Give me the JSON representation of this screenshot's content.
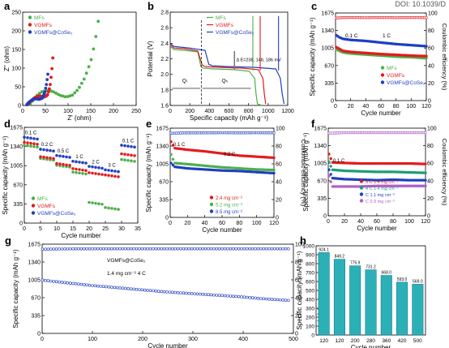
{
  "header": {
    "doi": "DOI: 10.1039/D"
  },
  "colors": {
    "mf": "#4daf4a",
    "vg": "#e41a1c",
    "cs": "#1f3fbf",
    "ce": "#1f3fbf",
    "gray": "#777777"
  },
  "panels": {
    "a": {
      "letter": "a",
      "xlabel": "Z' (ohm)",
      "ylabel": "Z'' (ohm)",
      "xticks": [
        "0",
        "50",
        "100",
        "150",
        "200",
        "250"
      ],
      "yticks": [
        "0",
        "50",
        "100",
        "150",
        "200",
        "250"
      ],
      "legend": [
        "MFs",
        "VGMFs",
        "VGMFs@CoSe₂"
      ]
    },
    "b": {
      "letter": "b",
      "xlabel": "Specific capacity (mAh g⁻¹)",
      "ylabel": "Potential (V)",
      "xticks": [
        "0",
        "200",
        "400",
        "600",
        "800",
        "1000",
        "1200"
      ],
      "yticks": [
        "1.6",
        "1.8",
        "2.0",
        "2.2",
        "2.4",
        "2.6",
        "2.8"
      ],
      "legend": [
        "MFs",
        "VGMFs",
        "VGMFs@CoSe₂"
      ],
      "annot": "Δ E=238, 148, 186 mV",
      "q_left": "Qₗ",
      "q_right": "Qₕ"
    },
    "c": {
      "letter": "c",
      "xlabel": "Cycle number",
      "ylabel": "Specific capacity (mAh g⁻¹)",
      "y2label": "Coulombic efficiency (%)",
      "xticks": [
        "0",
        "20",
        "40",
        "60",
        "80",
        "100",
        "120"
      ],
      "yticks": [
        "0",
        "335",
        "670",
        "1005",
        "1340",
        "1675"
      ],
      "y2ticks": [
        "0",
        "20",
        "40",
        "60",
        "80",
        "100"
      ],
      "rate1": "0.1 C",
      "rate2": "1 C",
      "legend": [
        "MFs",
        "VGMFs",
        "VGMFs@CoSe₂"
      ]
    },
    "d": {
      "letter": "d",
      "xlabel": "Cycle number",
      "ylabel": "Specific capacity (mAh g⁻¹)",
      "xticks": [
        "0",
        "5",
        "10",
        "15",
        "20",
        "25",
        "30",
        "35"
      ],
      "yticks": [
        "0",
        "335",
        "670",
        "1005",
        "1340",
        "1675"
      ],
      "rates": [
        "0.1 C",
        "0.2 C",
        "0.5 C",
        "1 C",
        "2 C",
        "3 C",
        "0.1 C"
      ],
      "legend": [
        "MFs",
        "VGMFs",
        "VGMFs@CoSe₂"
      ]
    },
    "e": {
      "letter": "e",
      "xlabel": "Cycle number",
      "ylabel": "Specific capacity (mAh g⁻¹)",
      "y2label": "Coulombic efficiency (%)",
      "xticks": [
        "0",
        "20",
        "40",
        "60",
        "80",
        "100",
        "120"
      ],
      "yticks": [
        "0",
        "335",
        "670",
        "1005",
        "1340",
        "1675"
      ],
      "y2ticks": [
        "0",
        "20",
        "40",
        "60",
        "80",
        "100"
      ],
      "rate1": "0.1 C",
      "rate2": "0.2 C",
      "legend": [
        "2.4 mg cm⁻²",
        "5.2 mg cm⁻²",
        "8.5 mg cm⁻²"
      ]
    },
    "f": {
      "letter": "f",
      "xlabel": "Cycle number",
      "ylabel": "Specific capacity (mAh g⁻¹)",
      "y2label": "Coulombic efficiency (%)",
      "xticks": [
        "0",
        "20",
        "40",
        "60",
        "80",
        "100",
        "120"
      ],
      "yticks": [
        "0",
        "335",
        "670",
        "1005",
        "1340",
        "1675"
      ],
      "y2ticks": [
        "0",
        "20",
        "40",
        "60",
        "80",
        "100"
      ],
      "rate1": "0.1 C",
      "legend": [
        "5 C 1.4 mg cm⁻²",
        "4 C 1.4 mg cm⁻²",
        "C 1.1 mg cm⁻²",
        "C 0.9 mg cm⁻²"
      ]
    },
    "g": {
      "letter": "g",
      "xlabel": "Cycle number",
      "ylabel": "Specific capacity (mAh g⁻¹)",
      "y2label": "Coulombic efficiency (%)",
      "xticks": [
        "0",
        "100",
        "200",
        "300",
        "400",
        "500"
      ],
      "yticks": [
        "0",
        "335",
        "670",
        "1005",
        "1340",
        "1675"
      ],
      "y2ticks": [
        "0",
        "20",
        "40",
        "60",
        "80",
        "100"
      ],
      "label1": "VGMFs@CoSe₂",
      "label2": "1.4 mg cm⁻² 4 C"
    },
    "h": {
      "letter": "h",
      "xlabel": "Cycle number",
      "ylabel": "Specific capacity (mAh g⁻¹)",
      "yticks": [
        "0",
        "100",
        "200",
        "300",
        "400",
        "500",
        "600",
        "700",
        "800",
        "900",
        "1000"
      ]
    }
  },
  "chart_data": [
    {
      "type": "scatter",
      "panel": "a",
      "xlim": [
        0,
        275
      ],
      "ylim": [
        0,
        275
      ],
      "series": [
        {
          "name": "MFs",
          "x": [
            18,
            22,
            28,
            35,
            45,
            58,
            72,
            90,
            105,
            120,
            135,
            150,
            165,
            175,
            183
          ],
          "y": [
            4,
            10,
            20,
            30,
            40,
            44,
            42,
            30,
            25,
            30,
            48,
            80,
            130,
            185,
            248
          ]
        },
        {
          "name": "VGMFs",
          "x": [
            12,
            18,
            24,
            32,
            42,
            52,
            60,
            66,
            70,
            73
          ],
          "y": [
            3,
            10,
            18,
            25,
            28,
            25,
            30,
            55,
            95,
            140
          ]
        },
        {
          "name": "VGMFs@CoSe₂",
          "x": [
            10,
            14,
            20,
            26,
            32,
            40,
            48,
            54,
            58,
            61
          ],
          "y": [
            2,
            8,
            14,
            18,
            20,
            18,
            22,
            40,
            65,
            92
          ]
        }
      ]
    },
    {
      "type": "line",
      "panel": "b",
      "xlim": [
        0,
        1280
      ],
      "ylim": [
        1.6,
        2.8
      ],
      "series": [
        {
          "name": "MFs",
          "x": [
            0,
            40,
            150,
            300,
            335,
            360,
            480,
            700,
            860,
            920,
            935,
            950,
            1000
          ],
          "y": [
            2.36,
            2.32,
            2.31,
            2.29,
            2.1,
            2.08,
            2.07,
            2.06,
            2.04,
            1.95,
            1.75,
            1.62,
            1.6
          ]
        },
        {
          "name": "VGMFs",
          "x": [
            0,
            40,
            150,
            300,
            350,
            380,
            520,
            780,
            960,
            1010,
            1025,
            1040
          ],
          "y": [
            2.38,
            2.34,
            2.33,
            2.3,
            2.12,
            2.1,
            2.09,
            2.08,
            2.06,
            1.95,
            1.75,
            1.62
          ]
        },
        {
          "name": "VGMFs@CoSe₂",
          "x": [
            0,
            40,
            200,
            380,
            420,
            460,
            640,
            920,
            1150,
            1200,
            1220,
            1240
          ],
          "y": [
            2.4,
            2.36,
            2.34,
            2.31,
            2.13,
            2.11,
            2.1,
            2.09,
            2.07,
            1.95,
            1.75,
            1.62
          ]
        }
      ]
    },
    {
      "type": "scatter",
      "panel": "c",
      "xlim": [
        0,
        120
      ],
      "ylim": [
        0,
        1675
      ],
      "y2lim": [
        0,
        105
      ],
      "series": [
        {
          "name": "MFs",
          "x": [
            1,
            5,
            10,
            20,
            40,
            60,
            80,
            100,
            120
          ],
          "y": [
            980,
            950,
            920,
            900,
            880,
            860,
            840,
            830,
            810
          ]
        },
        {
          "name": "VGMFs",
          "x": [
            1,
            5,
            10,
            20,
            40,
            60,
            80,
            100,
            120
          ],
          "y": [
            1020,
            990,
            950,
            930,
            910,
            890,
            875,
            860,
            850
          ]
        },
        {
          "name": "VGMFs@CoSe₂",
          "x": [
            1,
            5,
            10,
            20,
            40,
            60,
            80,
            100,
            120
          ],
          "y": [
            1250,
            1210,
            1180,
            1160,
            1140,
            1110,
            1080,
            1060,
            1040
          ]
        },
        {
          "name": "CE",
          "x": [
            1,
            10,
            20,
            40,
            60,
            80,
            100,
            120
          ],
          "y": [
            99,
            99.5,
            99.6,
            99.5,
            99.6,
            99.5,
            99.6,
            99.5
          ]
        }
      ]
    },
    {
      "type": "scatter",
      "panel": "d",
      "xlim": [
        0,
        35
      ],
      "ylim": [
        0,
        1675
      ],
      "categories": [
        "0.1 C",
        "0.2 C",
        "0.5 C",
        "1 C",
        "2 C",
        "3 C",
        "0.1 C"
      ],
      "series": [
        {
          "name": "MFs",
          "x": [
            2,
            7,
            12,
            17,
            22,
            27,
            32
          ],
          "y": [
            1330,
            1100,
            980,
            860,
            330,
            240,
            1080
          ]
        },
        {
          "name": "VGMFs",
          "x": [
            2,
            7,
            12,
            17,
            22,
            27,
            32
          ],
          "y": [
            1380,
            1130,
            1010,
            920,
            850,
            810,
            1180
          ]
        },
        {
          "name": "VGMFs@CoSe₂",
          "x": [
            2,
            7,
            12,
            17,
            22,
            27,
            32
          ],
          "y": [
            1470,
            1260,
            1150,
            1050,
            960,
            900,
            1330
          ]
        }
      ]
    },
    {
      "type": "scatter",
      "panel": "e",
      "xlim": [
        0,
        120
      ],
      "ylim": [
        0,
        1675
      ],
      "y2lim": [
        0,
        105
      ],
      "series": [
        {
          "name": "2.4 mg cm⁻²",
          "x": [
            1,
            5,
            20,
            40,
            60,
            80,
            100,
            120
          ],
          "y": [
            1420,
            1300,
            1270,
            1240,
            1200,
            1160,
            1140,
            1120
          ]
        },
        {
          "name": "5.2 mg cm⁻²",
          "x": [
            1,
            5,
            20,
            40,
            60,
            80,
            100,
            120
          ],
          "y": [
            1180,
            1020,
            1000,
            970,
            940,
            920,
            900,
            890
          ]
        },
        {
          "name": "8.5 mg cm⁻²",
          "x": [
            1,
            5,
            20,
            40,
            60,
            80,
            100,
            120
          ],
          "y": [
            1020,
            950,
            920,
            900,
            880,
            870,
            850,
            830
          ]
        },
        {
          "name": "CE",
          "x": [
            1,
            20,
            40,
            60,
            80,
            100,
            120
          ],
          "y": [
            99,
            99.5,
            99.5,
            99.6,
            99.5,
            99.6,
            99.5
          ]
        }
      ]
    },
    {
      "type": "scatter",
      "panel": "f",
      "xlim": [
        0,
        120
      ],
      "ylim": [
        0,
        1675
      ],
      "y2lim": [
        0,
        105
      ],
      "series": [
        {
          "name": "5 C 1.4 mg cm⁻²",
          "x": [
            1,
            5,
            20,
            40,
            60,
            80,
            100,
            120
          ],
          "y": [
            1180,
            1020,
            1010,
            1000,
            1000,
            1000,
            1000,
            990
          ]
        },
        {
          "name": "4 C 1.4 mg cm⁻²",
          "x": [
            1,
            5,
            20,
            40,
            60,
            80,
            100,
            120
          ],
          "y": [
            1030,
            880,
            860,
            850,
            840,
            840,
            830,
            820
          ]
        },
        {
          "name": "C 1.1 mg cm⁻²",
          "x": [
            1,
            5,
            20,
            40,
            60,
            80,
            100,
            120
          ],
          "y": [
            880,
            720,
            700,
            690,
            680,
            690,
            680,
            680
          ]
        },
        {
          "name": "C 0.9 mg cm⁻²",
          "x": [
            1,
            5,
            20,
            40,
            60,
            80,
            100,
            120
          ],
          "y": [
            760,
            560,
            560,
            560,
            570,
            570,
            570,
            570
          ]
        },
        {
          "name": "CE",
          "x": [
            1,
            20,
            40,
            60,
            80,
            100,
            120
          ],
          "y": [
            99,
            99.6,
            99.6,
            99.6,
            99.6,
            99.6,
            99.6
          ]
        }
      ]
    },
    {
      "type": "scatter",
      "panel": "g",
      "xlim": [
        0,
        510
      ],
      "ylim": [
        0,
        1675
      ],
      "y2lim": [
        0,
        105
      ],
      "series": [
        {
          "name": "VGMFs@CoSe₂",
          "x": [
            1,
            20,
            50,
            100,
            150,
            200,
            250,
            300,
            350,
            400,
            450,
            500
          ],
          "y": [
            1000,
            980,
            950,
            900,
            860,
            820,
            780,
            750,
            720,
            690,
            650,
            620
          ]
        },
        {
          "name": "CE",
          "x": [
            1,
            50,
            100,
            200,
            300,
            400,
            500
          ],
          "y": [
            99,
            99.5,
            99.6,
            99.6,
            99.6,
            99.6,
            99.6
          ]
        }
      ]
    },
    {
      "type": "bar",
      "panel": "h",
      "categories": [
        "120",
        "120",
        "200",
        "280",
        "360",
        "420",
        "500"
      ],
      "values": [
        924.1,
        849.2,
        775.9,
        731.2,
        668.0,
        593.0,
        569.0
      ],
      "labels": [
        "924.1",
        "849.2",
        "775.9",
        "731.2",
        "668.0",
        "593.0",
        "569.0"
      ],
      "ylim": [
        0,
        1000
      ]
    }
  ]
}
